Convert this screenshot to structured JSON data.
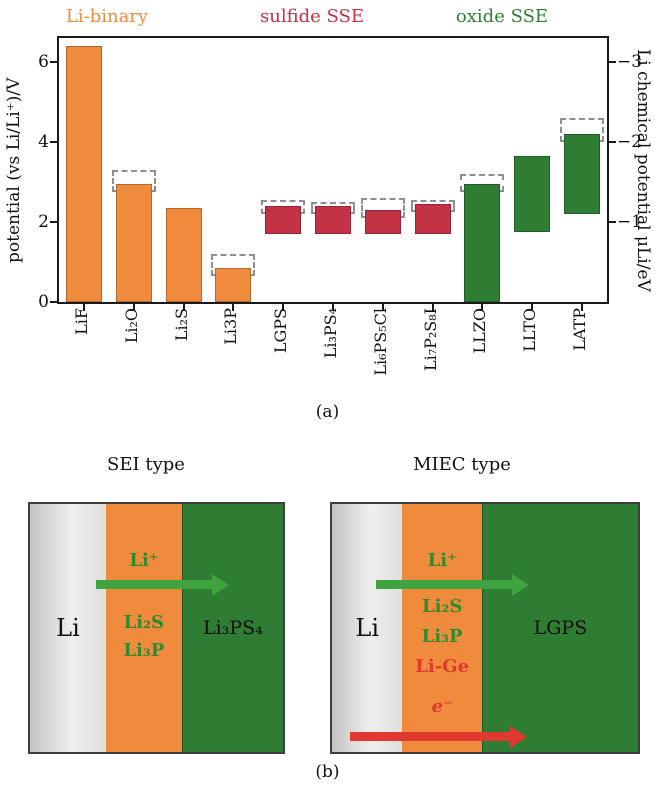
{
  "figure": {
    "caption_a": "(a)",
    "caption_b": "(b)"
  },
  "colors": {
    "orange": "#F08B3E",
    "crimson": "#C43246",
    "green": "#2E7D33",
    "arrow_green": "#3FA33F",
    "arrow_red": "#E0392F",
    "text_green": "#2E8B2E",
    "text_red": "#E0392F"
  },
  "chart_data": {
    "type": "bar",
    "ylabel_left": "potential (vs Li/Li⁺)/V",
    "ylabel_right": "Li chemical potential μLi/eV",
    "ylim": [
      0,
      6.6
    ],
    "yticks_left": [
      0,
      2,
      4,
      6
    ],
    "yticks_right": [
      {
        "at": 2,
        "label": "−1"
      },
      {
        "at": 4,
        "label": "−2"
      },
      {
        "at": 6,
        "label": "−3"
      }
    ],
    "groups": [
      {
        "label": "Li-binary",
        "color": "#F08B3E"
      },
      {
        "label": "sulfide SSE",
        "color": "#C43246"
      },
      {
        "label": "oxide SSE",
        "color": "#2E7D33"
      }
    ],
    "bars": [
      {
        "label": "LiF",
        "group": "li-binary",
        "range": [
          0,
          6.4
        ]
      },
      {
        "label": "Li₂O",
        "group": "li-binary",
        "range": [
          0,
          2.95
        ],
        "dashed_max": 3.3
      },
      {
        "label": "Li₂S",
        "group": "li-binary",
        "range": [
          0,
          2.35
        ]
      },
      {
        "label": "Li3P",
        "group": "li-binary",
        "range": [
          0,
          0.85
        ],
        "dashed_max": 1.2
      },
      {
        "label": "LGPS",
        "group": "sulfide-sse",
        "range": [
          1.7,
          2.4
        ],
        "dashed_max": 2.55
      },
      {
        "label": "Li₃PS₄",
        "group": "sulfide-sse",
        "range": [
          1.7,
          2.4
        ],
        "dashed_max": 2.5
      },
      {
        "label": "Li₆PS₅Cl",
        "group": "sulfide-sse",
        "range": [
          1.7,
          2.3
        ],
        "dashed_max": 2.6
      },
      {
        "label": "Li₇P₂S₈I",
        "group": "sulfide-sse",
        "range": [
          1.7,
          2.45
        ],
        "dashed_max": 2.55
      },
      {
        "label": "LLZO",
        "group": "oxide-sse",
        "range": [
          0,
          2.95
        ],
        "dashed_max": 3.2
      },
      {
        "label": "LLTO",
        "group": "oxide-sse",
        "range": [
          1.75,
          3.65
        ]
      },
      {
        "label": "LATP",
        "group": "oxide-sse",
        "range": [
          2.2,
          4.2
        ],
        "dashed_max": 4.6
      }
    ]
  },
  "panel_b": {
    "diagrams": [
      {
        "title": "SEI type",
        "anode_label": "Li",
        "ion_label": "Li⁺",
        "interphase_labels": [
          "Li₂S",
          "Li₃P"
        ],
        "electrolyte_label": "Li₃PS₄"
      },
      {
        "title": "MIEC type",
        "anode_label": "Li",
        "ion_label": "Li⁺",
        "interphase_labels": [
          "Li₂S",
          "Li₃P"
        ],
        "interphase_labels_red": [
          "Li-Ge"
        ],
        "electron_label": "e⁻",
        "electrolyte_label": "LGPS"
      }
    ]
  }
}
